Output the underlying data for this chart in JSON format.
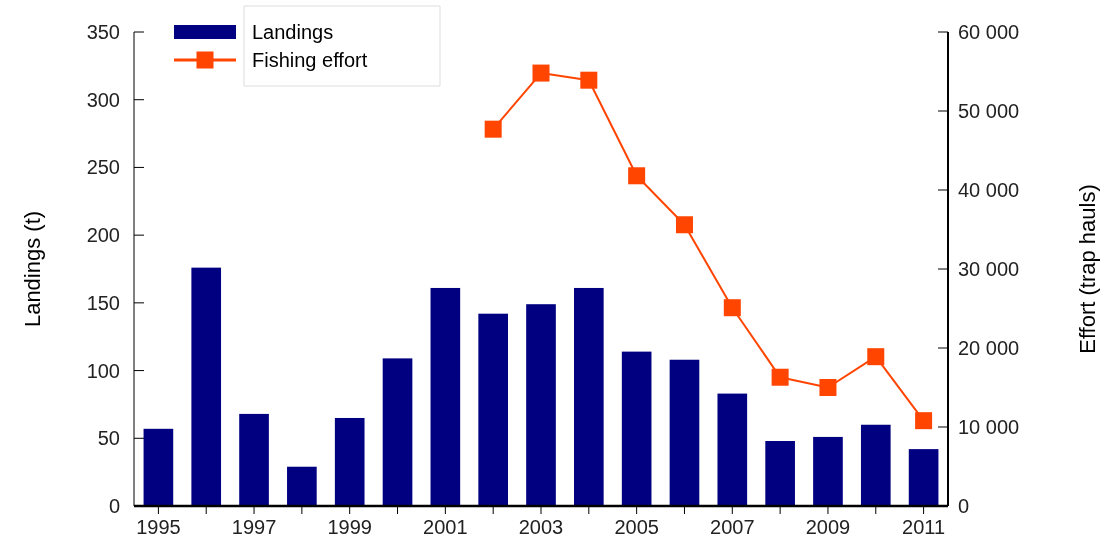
{
  "chart_data": {
    "type": "bar",
    "ylabel": "Landings (t)",
    "y2label": "Effort (trap hauls)",
    "categories": [
      "1995",
      null,
      "1997",
      null,
      "1999",
      null,
      "2001",
      null,
      "2003",
      null,
      "2005",
      null,
      "2007",
      null,
      "2009",
      null,
      "2011"
    ],
    "series": [
      {
        "name": "Landings",
        "type": "bar",
        "color": "#000080",
        "values": [
          57,
          176,
          68,
          29,
          65,
          109,
          161,
          142,
          149,
          161,
          114,
          108,
          83,
          48,
          51,
          60,
          42
        ]
      },
      {
        "name": "Fishing effort",
        "type": "line",
        "axis": "y2",
        "color": "#ff4500",
        "marker": "square",
        "values": [
          null,
          null,
          null,
          null,
          null,
          null,
          null,
          47700,
          54800,
          53900,
          41800,
          35600,
          25100,
          16300,
          15000,
          18900,
          10800
        ]
      }
    ],
    "ylim": [
      0,
      350
    ],
    "yticks": [
      0,
      50,
      100,
      150,
      200,
      250,
      300,
      350
    ],
    "y2lim": [
      0,
      60000
    ],
    "y2ticks": [
      0,
      {
        "value": 10000,
        "label": "10 000"
      },
      {
        "value": 20000,
        "label": "20 000"
      },
      {
        "value": 30000,
        "label": "30 000"
      },
      {
        "value": 40000,
        "label": "40 000"
      },
      {
        "value": 50000,
        "label": "50 000"
      },
      {
        "value": 60000,
        "label": "60 000"
      }
    ],
    "legend": "top left",
    "grid": false
  }
}
